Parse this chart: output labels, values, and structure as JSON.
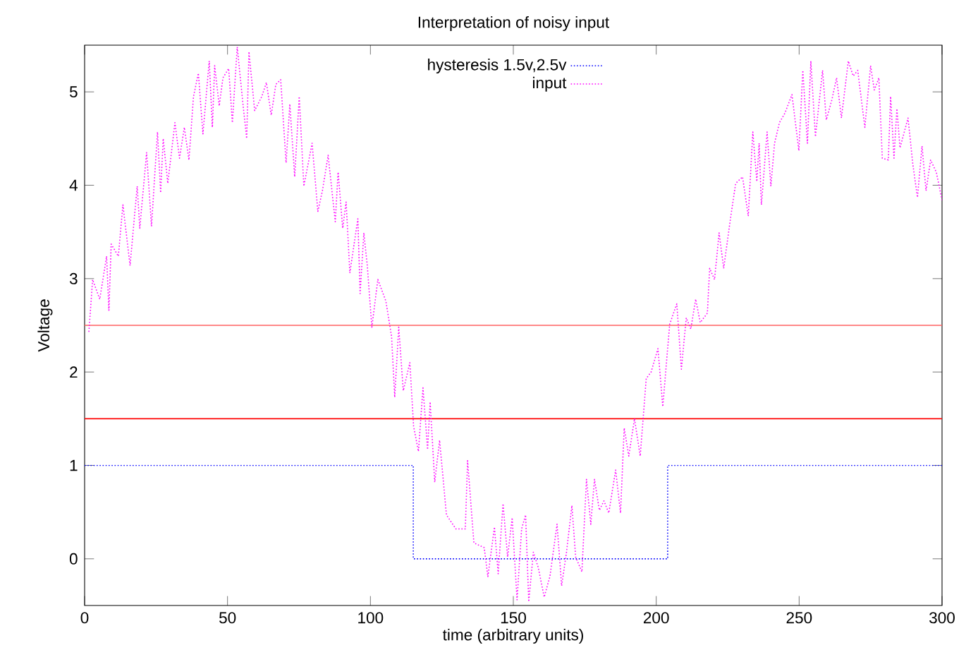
{
  "chart_data": {
    "type": "line",
    "title": "Interpretation of noisy input",
    "xlabel": "time (arbitrary units)",
    "ylabel": "Voltage",
    "xlim": [
      0,
      300
    ],
    "ylim": [
      -0.5,
      5.5
    ],
    "xticks": [
      0,
      50,
      100,
      150,
      200,
      250,
      300
    ],
    "yticks": [
      0,
      1,
      2,
      3,
      4,
      5
    ],
    "grid": false,
    "legend": "top",
    "marker": "none",
    "line_style": "dotted",
    "ref_lines": [
      {
        "axis": "y",
        "value": 2.5,
        "color": "#ff6060"
      },
      {
        "axis": "y",
        "value": 1.5,
        "color": "#ff0000"
      }
    ],
    "series": [
      {
        "name": "hysteresis 1.5v,2.5v",
        "type": "step",
        "color": "#0000ff",
        "x": [
          0,
          115,
          204,
          300
        ],
        "values": [
          1,
          0,
          1,
          1
        ]
      },
      {
        "name": "input",
        "type": "line",
        "color": "#ff00ff",
        "x": [
          1.5,
          2.8,
          5.3,
          7.7,
          8.5,
          9.3,
          11.8,
          13.4,
          15.9,
          18.4,
          19.3,
          21.7,
          23.4,
          25.5,
          26.6,
          27.5,
          29.1,
          31.6,
          33.2,
          34.9,
          36.5,
          38.1,
          39.8,
          41.4,
          43.6,
          44.7,
          45.5,
          47.1,
          48.4,
          50.4,
          51.7,
          53.4,
          55.3,
          56.7,
          57.5,
          59.5,
          62,
          63.6,
          65.3,
          66.9,
          68.6,
          70.5,
          71.8,
          73.5,
          75.1,
          76.7,
          79.6,
          81.6,
          83.2,
          85.2,
          87.7,
          88.7,
          90.3,
          91.5,
          92.8,
          95.6,
          96.4,
          97.7,
          98.9,
          100.5,
          102.6,
          105.4,
          107.4,
          108.5,
          109.9,
          111.5,
          113.8,
          115.1,
          116.8,
          118.4,
          120.0,
          120.9,
          122.5,
          124.2,
          126.6,
          129.9,
          133.2,
          134.0,
          136.2,
          139.8,
          141.1,
          143.4,
          144.7,
          146.4,
          148.0,
          149.6,
          151.3,
          152.9,
          154.3,
          155.4,
          157.0,
          158.7,
          160.8,
          162.8,
          165.3,
          166.9,
          168.6,
          170.5,
          171.8,
          174.0,
          175.6,
          177.1,
          178.4,
          180.1,
          181.7,
          183.4,
          185.8,
          187.5,
          188.8,
          190.4,
          192.4,
          194.4,
          196.5,
          198.2,
          200.6,
          202.3,
          204.7,
          207.2,
          208.8,
          210.5,
          212.1,
          213.8,
          215.4,
          217.9,
          218.7,
          220.4,
          222.0,
          223.6,
          226.1,
          227.8,
          230.2,
          232.2,
          233.8,
          235.2,
          236.0,
          236.8,
          238.8,
          240.1,
          241.4,
          243.1,
          245.0,
          247.5,
          249.9,
          251.3,
          252.9,
          254.1,
          255.7,
          258.2,
          259.5,
          261.5,
          263.1,
          264.8,
          267.2,
          268.9,
          270.5,
          273.0,
          275.0,
          276.3,
          277.9,
          279.1,
          281.2,
          282.0,
          283.2,
          284.2,
          285.3,
          288.1,
          289.8,
          291.4,
          293.0,
          294.4,
          296.0,
          298.0,
          300
        ],
        "values": [
          2.43,
          2.99,
          2.78,
          3.24,
          2.66,
          3.37,
          3.24,
          3.79,
          3.14,
          3.99,
          3.54,
          4.35,
          3.56,
          4.57,
          3.92,
          4.5,
          4.02,
          4.67,
          4.29,
          4.62,
          4.27,
          4.95,
          5.2,
          4.55,
          5.33,
          4.62,
          5.28,
          4.85,
          5.15,
          5.25,
          4.67,
          5.48,
          4.9,
          4.5,
          5.43,
          4.8,
          4.95,
          5.1,
          4.75,
          5.08,
          5.13,
          4.24,
          4.87,
          4.09,
          4.95,
          3.99,
          4.45,
          3.72,
          3.94,
          4.32,
          3.61,
          4.14,
          3.54,
          3.82,
          3.06,
          3.64,
          2.84,
          3.49,
          3.14,
          2.48,
          2.99,
          2.76,
          2.38,
          1.73,
          2.48,
          1.8,
          2.1,
          1.42,
          1.15,
          1.83,
          1.17,
          1.68,
          0.82,
          1.27,
          0.47,
          0.32,
          0.32,
          1.05,
          0.17,
          0.12,
          -0.19,
          0.34,
          -0.16,
          0.59,
          0.02,
          0.44,
          -0.44,
          0.32,
          0.47,
          -0.46,
          0.07,
          -0.09,
          -0.41,
          -0.19,
          0.37,
          -0.29,
          0.07,
          0.57,
          0.02,
          -0.14,
          0.85,
          0.37,
          0.85,
          0.52,
          0.62,
          0.49,
          0.95,
          0.49,
          1.4,
          1.1,
          1.5,
          1.1,
          1.93,
          2.0,
          2.25,
          1.63,
          2.51,
          2.73,
          2.03,
          2.58,
          2.46,
          2.78,
          2.53,
          2.63,
          3.11,
          2.99,
          3.49,
          3.11,
          3.67,
          4.02,
          4.09,
          3.67,
          4.57,
          4.04,
          4.45,
          3.79,
          4.57,
          3.99,
          4.45,
          4.67,
          4.77,
          4.97,
          4.37,
          5.23,
          4.45,
          5.33,
          4.52,
          5.23,
          4.7,
          4.92,
          5.15,
          4.72,
          5.33,
          5.17,
          5.23,
          4.62,
          5.28,
          5.02,
          5.15,
          4.29,
          4.27,
          4.95,
          4.29,
          4.82,
          4.4,
          4.72,
          4.22,
          3.87,
          4.42,
          3.94,
          4.27,
          4.14,
          3.84
        ]
      }
    ]
  }
}
